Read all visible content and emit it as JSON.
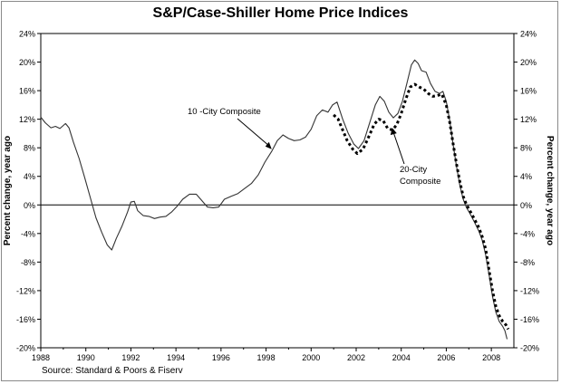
{
  "chart_data": {
    "type": "line",
    "title": "S&P/Case-Shiller Home Price Indices",
    "ylabel_left": "Percent change, year ago",
    "ylabel_right": "Percent change, year ago",
    "xlim": [
      1988,
      2009
    ],
    "ylim": [
      -20,
      24
    ],
    "x_ticks": [
      1988,
      1990,
      1992,
      1994,
      1996,
      1998,
      2000,
      2002,
      2004,
      2006,
      2008
    ],
    "x_tick_labels": [
      "1988",
      "1990",
      "1992",
      "1994",
      "1996",
      "1998",
      "2000",
      "2002",
      "2004",
      "2006",
      "2008"
    ],
    "y_ticks": [
      -20,
      -16,
      -12,
      -8,
      -4,
      0,
      4,
      8,
      12,
      16,
      20,
      24
    ],
    "y_tick_labels": [
      "-20%",
      "-16%",
      "-12%",
      "-8%",
      "-4%",
      "0%",
      "4%",
      "8%",
      "12%",
      "16%",
      "20%",
      "24%"
    ],
    "grid": false,
    "zero_line": true,
    "series": [
      {
        "name": "10 -City Composite",
        "style": "solid",
        "color": "#333333",
        "points": [
          [
            1988.0,
            12.3
          ],
          [
            1988.2,
            11.5
          ],
          [
            1988.45,
            10.8
          ],
          [
            1988.65,
            11.0
          ],
          [
            1988.85,
            10.7
          ],
          [
            1989.1,
            11.4
          ],
          [
            1989.25,
            10.8
          ],
          [
            1989.45,
            8.8
          ],
          [
            1989.7,
            6.5
          ],
          [
            1989.95,
            3.8
          ],
          [
            1990.2,
            1.0
          ],
          [
            1990.45,
            -1.8
          ],
          [
            1990.7,
            -3.8
          ],
          [
            1990.95,
            -5.6
          ],
          [
            1991.15,
            -6.3
          ],
          [
            1991.35,
            -4.7
          ],
          [
            1991.6,
            -3.0
          ],
          [
            1991.85,
            -1.0
          ],
          [
            1992.0,
            0.4
          ],
          [
            1992.15,
            0.5
          ],
          [
            1992.3,
            -0.8
          ],
          [
            1992.55,
            -1.5
          ],
          [
            1992.8,
            -1.6
          ],
          [
            1993.05,
            -1.9
          ],
          [
            1993.3,
            -1.7
          ],
          [
            1993.55,
            -1.6
          ],
          [
            1993.8,
            -1.0
          ],
          [
            1994.05,
            -0.2
          ],
          [
            1994.3,
            0.8
          ],
          [
            1994.6,
            1.5
          ],
          [
            1994.9,
            1.5
          ],
          [
            1995.15,
            0.6
          ],
          [
            1995.4,
            -0.3
          ],
          [
            1995.65,
            -0.4
          ],
          [
            1995.9,
            -0.3
          ],
          [
            1996.15,
            0.8
          ],
          [
            1996.45,
            1.2
          ],
          [
            1996.75,
            1.6
          ],
          [
            1997.05,
            2.3
          ],
          [
            1997.35,
            3.0
          ],
          [
            1997.65,
            4.2
          ],
          [
            1997.95,
            6.0
          ],
          [
            1998.25,
            7.5
          ],
          [
            1998.5,
            9.0
          ],
          [
            1998.75,
            9.8
          ],
          [
            1999.0,
            9.3
          ],
          [
            1999.25,
            9.0
          ],
          [
            1999.5,
            9.1
          ],
          [
            1999.75,
            9.5
          ],
          [
            2000.0,
            10.6
          ],
          [
            2000.25,
            12.5
          ],
          [
            2000.5,
            13.3
          ],
          [
            2000.75,
            13.0
          ],
          [
            2000.95,
            14.0
          ],
          [
            2001.15,
            14.4
          ],
          [
            2001.4,
            12.0
          ],
          [
            2001.65,
            10.0
          ],
          [
            2001.9,
            8.5
          ],
          [
            2002.1,
            7.9
          ],
          [
            2002.35,
            9.0
          ],
          [
            2002.6,
            11.5
          ],
          [
            2002.85,
            14.0
          ],
          [
            2003.05,
            15.2
          ],
          [
            2003.25,
            14.5
          ],
          [
            2003.45,
            13.0
          ],
          [
            2003.65,
            12.2
          ],
          [
            2003.85,
            12.8
          ],
          [
            2004.05,
            14.5
          ],
          [
            2004.25,
            17.0
          ],
          [
            2004.45,
            19.6
          ],
          [
            2004.6,
            20.3
          ],
          [
            2004.75,
            19.8
          ],
          [
            2004.9,
            18.8
          ],
          [
            2005.1,
            18.6
          ],
          [
            2005.3,
            17.0
          ],
          [
            2005.5,
            15.9
          ],
          [
            2005.7,
            15.6
          ],
          [
            2005.85,
            15.9
          ],
          [
            2006.0,
            14.5
          ],
          [
            2006.15,
            11.8
          ],
          [
            2006.3,
            8.5
          ],
          [
            2006.45,
            5.5
          ],
          [
            2006.6,
            2.8
          ],
          [
            2006.75,
            0.8
          ],
          [
            2006.9,
            -0.4
          ],
          [
            2007.05,
            -1.2
          ],
          [
            2007.25,
            -2.4
          ],
          [
            2007.45,
            -3.7
          ],
          [
            2007.6,
            -5.0
          ],
          [
            2007.75,
            -7.0
          ],
          [
            2007.9,
            -9.8
          ],
          [
            2008.05,
            -12.8
          ],
          [
            2008.2,
            -15.0
          ],
          [
            2008.35,
            -16.3
          ],
          [
            2008.5,
            -17.0
          ],
          [
            2008.6,
            -17.6
          ],
          [
            2008.7,
            -18.8
          ]
        ]
      },
      {
        "name": "20-City Composite",
        "label_lines": [
          "20-City",
          "Composite"
        ],
        "style": "dotted",
        "color": "#000000",
        "points": [
          [
            2001.0,
            12.6
          ],
          [
            2001.2,
            12.0
          ],
          [
            2001.4,
            10.5
          ],
          [
            2001.6,
            9.0
          ],
          [
            2001.85,
            7.8
          ],
          [
            2002.05,
            7.2
          ],
          [
            2002.3,
            7.8
          ],
          [
            2002.55,
            9.5
          ],
          [
            2002.8,
            11.3
          ],
          [
            2003.0,
            12.0
          ],
          [
            2003.2,
            11.8
          ],
          [
            2003.4,
            10.7
          ],
          [
            2003.6,
            10.5
          ],
          [
            2003.8,
            11.2
          ],
          [
            2004.0,
            12.8
          ],
          [
            2004.2,
            14.8
          ],
          [
            2004.4,
            16.5
          ],
          [
            2004.6,
            16.9
          ],
          [
            2004.8,
            16.5
          ],
          [
            2005.0,
            16.2
          ],
          [
            2005.2,
            15.6
          ],
          [
            2005.4,
            15.2
          ],
          [
            2005.6,
            15.3
          ],
          [
            2005.8,
            15.5
          ],
          [
            2006.0,
            14.0
          ],
          [
            2006.15,
            11.6
          ],
          [
            2006.3,
            8.6
          ],
          [
            2006.45,
            5.8
          ],
          [
            2006.6,
            3.3
          ],
          [
            2006.75,
            1.2
          ],
          [
            2006.9,
            0.0
          ],
          [
            2007.05,
            -0.8
          ],
          [
            2007.25,
            -2.0
          ],
          [
            2007.45,
            -3.2
          ],
          [
            2007.6,
            -4.5
          ],
          [
            2007.75,
            -6.2
          ],
          [
            2007.9,
            -9.2
          ],
          [
            2008.05,
            -12.0
          ],
          [
            2008.2,
            -14.2
          ],
          [
            2008.35,
            -15.5
          ],
          [
            2008.5,
            -16.3
          ],
          [
            2008.65,
            -16.8
          ],
          [
            2008.75,
            -17.4
          ]
        ]
      }
    ],
    "annotations": [
      {
        "text": "10 -City Composite",
        "points_to": [
          1998.25,
          7.8
        ]
      },
      {
        "text": "20-City Composite",
        "points_to": [
          2003.6,
          10.8
        ]
      }
    ],
    "source": "Source: Standard & Poors & Fiserv"
  }
}
